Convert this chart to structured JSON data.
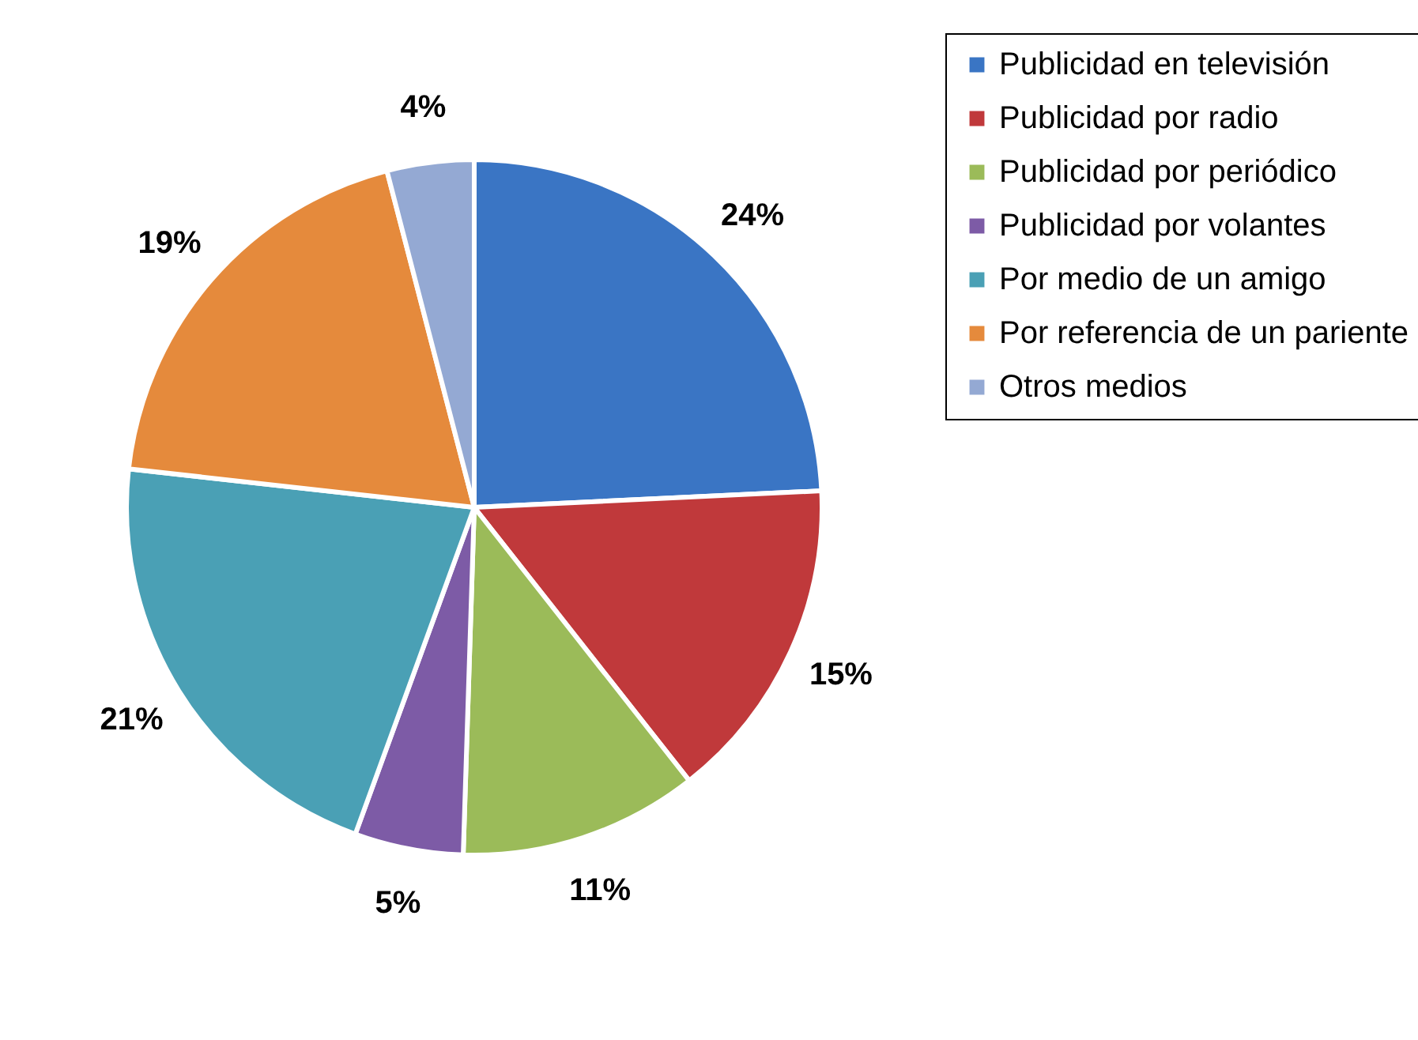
{
  "chart_data": {
    "type": "pie",
    "categories": [
      "Publicidad en televisión",
      "Publicidad por radio",
      "Publicidad por periódico",
      "Publicidad por volantes",
      "Por medio de un amigo",
      "Por referencia de un pariente",
      "Otros medios"
    ],
    "values": [
      24,
      15,
      11,
      5,
      21,
      19,
      4
    ],
    "colors": [
      "#3a75c4",
      "#c0393b",
      "#9bbb59",
      "#7d5ba6",
      "#4aa0b5",
      "#e58a3c",
      "#94a9d3"
    ],
    "value_labels": [
      "24%",
      "15%",
      "11%",
      "5%",
      "21%",
      "19%",
      "4%"
    ],
    "legend": "right"
  }
}
